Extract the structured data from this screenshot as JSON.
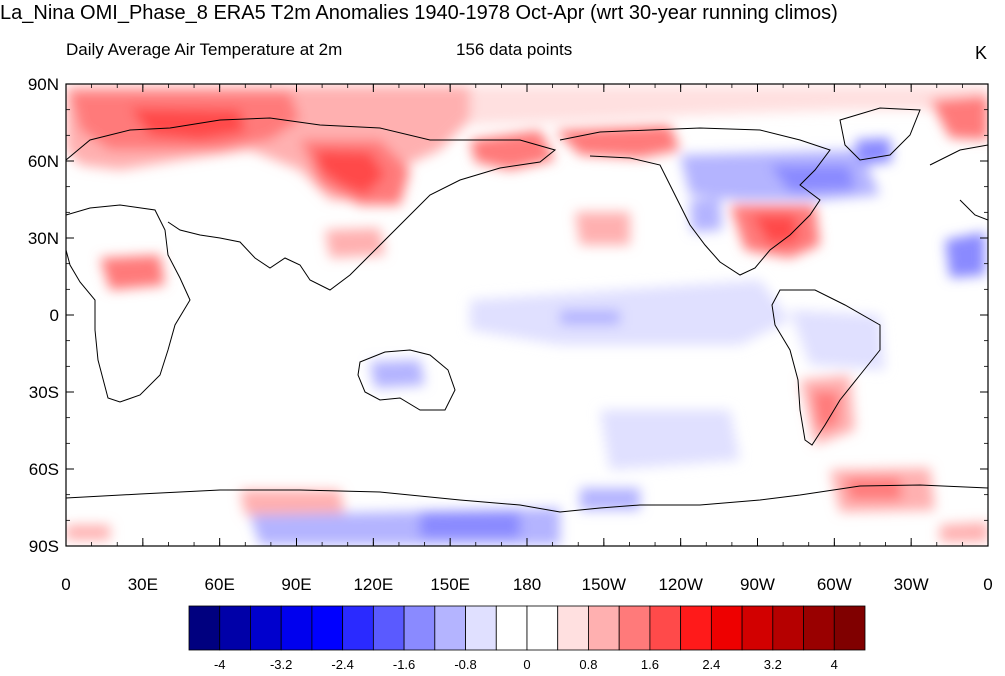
{
  "title": "La_Nina OMI_Phase_8 ERA5 T2m Anomalies 1940-1978 Oct-Apr (wrt 30-year running climos)",
  "left_subtitle": "Daily Average Air Temperature at 2m",
  "center_subtitle": "156 data points",
  "units": "K",
  "map": {
    "projection": "cylindrical equidistant, centered on 180",
    "lat_ticks": [
      "90N",
      "60N",
      "30N",
      "0",
      "30S",
      "60S",
      "90S"
    ],
    "lon_ticks": [
      "0",
      "30E",
      "60E",
      "90E",
      "120E",
      "150E",
      "180",
      "150W",
      "120W",
      "90W",
      "60W",
      "30W",
      "0"
    ]
  },
  "colorbar": {
    "colors": [
      "#00007f",
      "#0000a8",
      "#0000cd",
      "#0000ee",
      "#0000ff",
      "#2a2aff",
      "#5a5aff",
      "#8a8aff",
      "#b4b4ff",
      "#e0e0ff",
      "#ffffff",
      "#ffffff",
      "#ffe0e0",
      "#ffb0b0",
      "#ff7a7a",
      "#ff4a4a",
      "#ff1a1a",
      "#ee0000",
      "#d20000",
      "#b50000",
      "#990000",
      "#800000"
    ],
    "labels": [
      "-4",
      "-3.2",
      "-2.4",
      "-1.6",
      "-0.8",
      "0",
      "0.8",
      "1.6",
      "2.4",
      "3.2",
      "4"
    ]
  },
  "anomaly_regions": [
    {
      "name": "northern-eurasia-arctic-warm",
      "lon": 45,
      "lat": 75,
      "value": 2.6
    },
    {
      "name": "barents-warm-core",
      "lon": 50,
      "lat": 73,
      "value": 3.0
    },
    {
      "name": "central-siberia-warm",
      "lon": 100,
      "lat": 57,
      "value": 2.8
    },
    {
      "name": "mongolia-warm",
      "lon": 108,
      "lat": 48,
      "value": 2.2
    },
    {
      "name": "chukotka-warm",
      "lon": 170,
      "lat": 65,
      "value": 2.0
    },
    {
      "name": "alaska-warm",
      "lon": 210,
      "lat": 67,
      "value": 1.8
    },
    {
      "name": "southeast-usa-warm",
      "lon": 275,
      "lat": 33,
      "value": 2.2
    },
    {
      "name": "canada-cold",
      "lon": 280,
      "lat": 55,
      "value": -1.6
    },
    {
      "name": "greenland-cold",
      "lon": 315,
      "lat": 63,
      "value": -1.6
    },
    {
      "name": "north-atlantic-cold",
      "lon": 340,
      "lat": 28,
      "value": -1.4
    },
    {
      "name": "arabia-warm",
      "lon": 20,
      "lat": 18,
      "value": 1.8
    },
    {
      "name": "north-pacific-warm",
      "lon": 195,
      "lat": 33,
      "value": 1.2
    },
    {
      "name": "argentina-warm",
      "lon": 300,
      "lat": -35,
      "value": 2.0
    },
    {
      "name": "antarctic-atlantic-warm",
      "lon": 312,
      "lat": -68,
      "value": 2.0
    },
    {
      "name": "antarctic-indian-warm",
      "lon": 80,
      "lat": -73,
      "value": 1.4
    },
    {
      "name": "ross-sea-cold",
      "lon": 150,
      "lat": -78,
      "value": -1.6
    },
    {
      "name": "eastern-pacific-cool",
      "lon": 220,
      "lat": 0,
      "value": -1.0
    },
    {
      "name": "australia-cool",
      "lon": 120,
      "lat": -22,
      "value": -1.0
    }
  ]
}
